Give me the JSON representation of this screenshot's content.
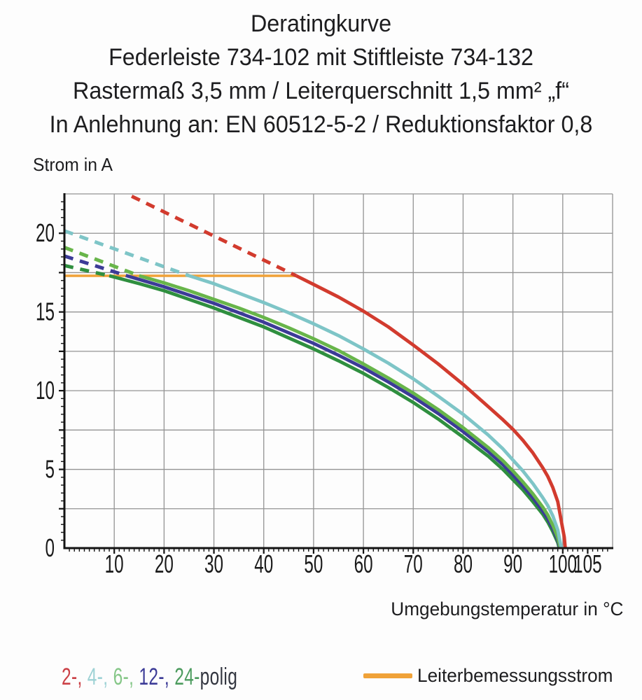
{
  "title": {
    "line1": "Deratingkurve",
    "line2": "Federleiste 734-102 mit Stiftleiste 734-132",
    "line3": "Rastermaß 3,5 mm / Leiterquerschnitt 1,5 mm² „f“",
    "line4": "In Anlehnung an: EN 60512-5-2 / Reduktionsfaktor 0,8"
  },
  "chart_data": {
    "type": "line",
    "title": "Deratingkurve",
    "xlabel": "Umgebungstemperatur in °C",
    "ylabel": "Strom in A",
    "xlim": [
      0,
      110
    ],
    "ylim": [
      0,
      22.5
    ],
    "grid": {
      "x_step": 10,
      "y_step": 2.5,
      "on": true,
      "color": "#939393"
    },
    "x_ticks": [
      10,
      20,
      30,
      40,
      50,
      60,
      70,
      80,
      90,
      100,
      105
    ],
    "y_ticks": [
      0,
      5,
      10,
      15,
      20
    ],
    "axis_color": "#141414",
    "rated_current_line": {
      "label": "Leiterbemessungsstrom",
      "value_a": 17.3,
      "x_start": 0,
      "x_end": 46.5,
      "color": "#f0a238"
    },
    "series": [
      {
        "name": "24-polig",
        "color": "#2f8f3f",
        "dashed": [
          [
            0,
            17.95
          ],
          [
            9,
            17.3
          ]
        ],
        "solid": [
          [
            9,
            17.3
          ],
          [
            15,
            16.8
          ],
          [
            20,
            16.35
          ],
          [
            30,
            15.25
          ],
          [
            40,
            14.05
          ],
          [
            50,
            12.65
          ],
          [
            55,
            11.9
          ],
          [
            60,
            11.1
          ],
          [
            65,
            10.2
          ],
          [
            70,
            9.25
          ],
          [
            75,
            8.2
          ],
          [
            80,
            7.05
          ],
          [
            85,
            5.85
          ],
          [
            88,
            5.0
          ],
          [
            90,
            4.35
          ],
          [
            92,
            3.7
          ],
          [
            94,
            2.95
          ],
          [
            96,
            2.15
          ],
          [
            97,
            1.65
          ],
          [
            98,
            1.05
          ],
          [
            99,
            0.35
          ],
          [
            99.3,
            0
          ]
        ]
      },
      {
        "name": "12-polig",
        "color": "#3c3b97",
        "dashed": [
          [
            0,
            18.55
          ],
          [
            12.5,
            17.3
          ]
        ],
        "solid": [
          [
            12.5,
            17.3
          ],
          [
            20,
            16.6
          ],
          [
            30,
            15.55
          ],
          [
            40,
            14.35
          ],
          [
            50,
            13.0
          ],
          [
            55,
            12.25
          ],
          [
            60,
            11.45
          ],
          [
            65,
            10.55
          ],
          [
            70,
            9.6
          ],
          [
            75,
            8.55
          ],
          [
            80,
            7.4
          ],
          [
            85,
            6.15
          ],
          [
            88,
            5.3
          ],
          [
            90,
            4.65
          ],
          [
            92,
            3.95
          ],
          [
            94,
            3.2
          ],
          [
            96,
            2.35
          ],
          [
            97,
            1.85
          ],
          [
            98,
            1.25
          ],
          [
            99,
            0.5
          ],
          [
            99.4,
            0
          ]
        ]
      },
      {
        "name": "6-polig",
        "color": "#68b54a",
        "dashed": [
          [
            0,
            19.1
          ],
          [
            15,
            17.3
          ]
        ],
        "solid": [
          [
            15,
            17.3
          ],
          [
            20,
            16.85
          ],
          [
            25,
            16.35
          ],
          [
            30,
            15.8
          ],
          [
            35,
            15.25
          ],
          [
            40,
            14.65
          ],
          [
            45,
            14.0
          ],
          [
            50,
            13.3
          ],
          [
            55,
            12.55
          ],
          [
            60,
            11.7
          ],
          [
            65,
            10.8
          ],
          [
            70,
            9.85
          ],
          [
            75,
            8.8
          ],
          [
            80,
            7.65
          ],
          [
            85,
            6.4
          ],
          [
            88,
            5.55
          ],
          [
            90,
            4.9
          ],
          [
            92,
            4.2
          ],
          [
            94,
            3.45
          ],
          [
            96,
            2.6
          ],
          [
            97,
            2.1
          ],
          [
            98,
            1.45
          ],
          [
            99,
            0.65
          ],
          [
            99.5,
            0
          ]
        ]
      },
      {
        "name": "4-polig",
        "color": "#7ec5c7",
        "dashed": [
          [
            0,
            20.15
          ],
          [
            25,
            17.3
          ]
        ],
        "solid": [
          [
            25,
            17.3
          ],
          [
            30,
            16.8
          ],
          [
            35,
            16.2
          ],
          [
            40,
            15.6
          ],
          [
            45,
            14.95
          ],
          [
            50,
            14.25
          ],
          [
            55,
            13.5
          ],
          [
            60,
            12.65
          ],
          [
            65,
            11.75
          ],
          [
            70,
            10.75
          ],
          [
            75,
            9.65
          ],
          [
            80,
            8.5
          ],
          [
            85,
            7.2
          ],
          [
            88,
            6.3
          ],
          [
            90,
            5.6
          ],
          [
            92,
            4.9
          ],
          [
            94,
            4.1
          ],
          [
            96,
            3.2
          ],
          [
            97,
            2.7
          ],
          [
            98,
            2.05
          ],
          [
            99,
            1.15
          ],
          [
            99.7,
            0
          ]
        ]
      },
      {
        "name": "2-polig",
        "color": "#d23b2e",
        "dashed": [
          [
            13.5,
            22.35
          ],
          [
            46.5,
            17.3
          ]
        ],
        "solid": [
          [
            46.5,
            17.3
          ],
          [
            50,
            16.75
          ],
          [
            55,
            15.95
          ],
          [
            60,
            15.05
          ],
          [
            65,
            14.05
          ],
          [
            70,
            12.9
          ],
          [
            75,
            11.7
          ],
          [
            80,
            10.4
          ],
          [
            85,
            9.0
          ],
          [
            88,
            8.15
          ],
          [
            90,
            7.55
          ],
          [
            92,
            6.85
          ],
          [
            94,
            6.05
          ],
          [
            96,
            5.1
          ],
          [
            97,
            4.55
          ],
          [
            98,
            3.85
          ],
          [
            99,
            2.95
          ],
          [
            99.8,
            1.55
          ],
          [
            100.3,
            0.7
          ],
          [
            100.5,
            0
          ]
        ]
      }
    ]
  },
  "axis_labels": {
    "x": "Umgebungstemperatur in °C",
    "y": "Strom in A"
  },
  "legend": {
    "poles": {
      "items": [
        {
          "text": "2-, ",
          "color": "#cb4046"
        },
        {
          "text": "4-, ",
          "color": "#9ed2d5"
        },
        {
          "text": "6-, ",
          "color": "#86c788"
        },
        {
          "text": "12-, ",
          "color": "#3c3b97"
        },
        {
          "text": "24-",
          "color": "#4d9c5f"
        },
        {
          "text": "polig",
          "color": "#333640"
        }
      ]
    },
    "rated_current": {
      "label": "Leiterbemessungsstrom",
      "swatch_color": "#f0a238"
    }
  }
}
